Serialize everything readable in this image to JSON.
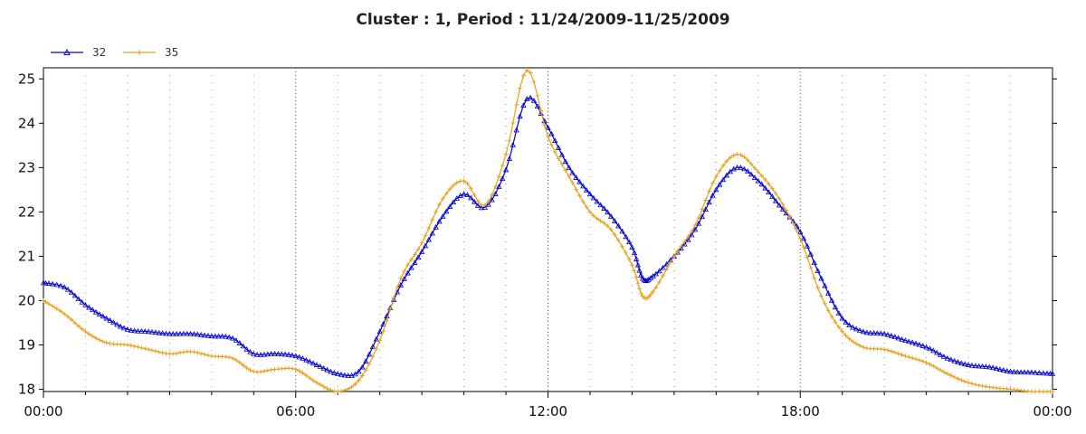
{
  "chart_data": {
    "type": "line",
    "title": "Cluster : 1, Period : 11/24/2009-11/25/2009",
    "xlabel": "",
    "ylabel": "",
    "x_tick_labels": [
      "00:00",
      "06:00",
      "12:00",
      "18:00",
      "00:00"
    ],
    "y_ticks": [
      18,
      19,
      20,
      21,
      22,
      23,
      24,
      25
    ],
    "xlim": [
      0,
      24
    ],
    "ylim": [
      17.95,
      25.25
    ],
    "grid": true,
    "legend_position": "top-left",
    "series": [
      {
        "name": "32",
        "color": "#0000cc",
        "marker": "triangle",
        "points": [
          [
            0.0,
            20.4
          ],
          [
            0.5,
            20.3
          ],
          [
            1.0,
            19.9
          ],
          [
            1.5,
            19.6
          ],
          [
            2.0,
            19.35
          ],
          [
            2.5,
            19.3
          ],
          [
            3.0,
            19.25
          ],
          [
            3.5,
            19.25
          ],
          [
            4.0,
            19.2
          ],
          [
            4.5,
            19.15
          ],
          [
            5.0,
            18.8
          ],
          [
            5.5,
            18.8
          ],
          [
            6.0,
            18.75
          ],
          [
            6.5,
            18.55
          ],
          [
            7.0,
            18.35
          ],
          [
            7.5,
            18.4
          ],
          [
            8.0,
            19.3
          ],
          [
            8.5,
            20.35
          ],
          [
            9.0,
            21.1
          ],
          [
            9.5,
            21.9
          ],
          [
            10.0,
            22.4
          ],
          [
            10.5,
            22.1
          ],
          [
            11.0,
            22.95
          ],
          [
            11.5,
            24.55
          ],
          [
            12.0,
            23.9
          ],
          [
            12.5,
            23.0
          ],
          [
            13.0,
            22.4
          ],
          [
            13.5,
            21.9
          ],
          [
            14.0,
            21.2
          ],
          [
            14.25,
            20.5
          ],
          [
            14.5,
            20.55
          ],
          [
            15.0,
            21.0
          ],
          [
            15.5,
            21.6
          ],
          [
            16.0,
            22.5
          ],
          [
            16.5,
            23.0
          ],
          [
            17.0,
            22.7
          ],
          [
            17.5,
            22.15
          ],
          [
            18.0,
            21.55
          ],
          [
            18.5,
            20.5
          ],
          [
            19.0,
            19.6
          ],
          [
            19.5,
            19.3
          ],
          [
            20.0,
            19.25
          ],
          [
            20.5,
            19.1
          ],
          [
            21.0,
            18.95
          ],
          [
            21.5,
            18.7
          ],
          [
            22.0,
            18.55
          ],
          [
            22.5,
            18.5
          ],
          [
            23.0,
            18.4
          ],
          [
            23.5,
            18.38
          ],
          [
            24.0,
            18.35
          ]
        ]
      },
      {
        "name": "35",
        "color": "#e6a11a",
        "marker": "plus",
        "points": [
          [
            0.0,
            20.0
          ],
          [
            0.5,
            19.7
          ],
          [
            1.0,
            19.3
          ],
          [
            1.5,
            19.05
          ],
          [
            2.0,
            19.0
          ],
          [
            2.5,
            18.9
          ],
          [
            3.0,
            18.8
          ],
          [
            3.5,
            18.85
          ],
          [
            4.0,
            18.75
          ],
          [
            4.5,
            18.7
          ],
          [
            5.0,
            18.4
          ],
          [
            5.5,
            18.45
          ],
          [
            6.0,
            18.45
          ],
          [
            6.5,
            18.15
          ],
          [
            7.0,
            17.95
          ],
          [
            7.5,
            18.2
          ],
          [
            8.0,
            19.1
          ],
          [
            8.5,
            20.5
          ],
          [
            9.0,
            21.3
          ],
          [
            9.5,
            22.3
          ],
          [
            10.0,
            22.7
          ],
          [
            10.5,
            22.15
          ],
          [
            11.0,
            23.3
          ],
          [
            11.5,
            25.2
          ],
          [
            12.0,
            23.7
          ],
          [
            12.5,
            22.8
          ],
          [
            13.0,
            22.0
          ],
          [
            13.5,
            21.6
          ],
          [
            14.0,
            20.8
          ],
          [
            14.25,
            20.1
          ],
          [
            14.5,
            20.2
          ],
          [
            15.0,
            21.0
          ],
          [
            15.5,
            21.7
          ],
          [
            16.0,
            22.8
          ],
          [
            16.5,
            23.3
          ],
          [
            17.0,
            22.9
          ],
          [
            17.5,
            22.3
          ],
          [
            18.0,
            21.4
          ],
          [
            18.5,
            20.1
          ],
          [
            19.0,
            19.3
          ],
          [
            19.5,
            18.95
          ],
          [
            20.0,
            18.9
          ],
          [
            20.5,
            18.75
          ],
          [
            21.0,
            18.6
          ],
          [
            21.5,
            18.35
          ],
          [
            22.0,
            18.15
          ],
          [
            22.5,
            18.05
          ],
          [
            23.0,
            18.0
          ],
          [
            23.5,
            17.95
          ],
          [
            24.0,
            17.95
          ]
        ]
      }
    ]
  }
}
